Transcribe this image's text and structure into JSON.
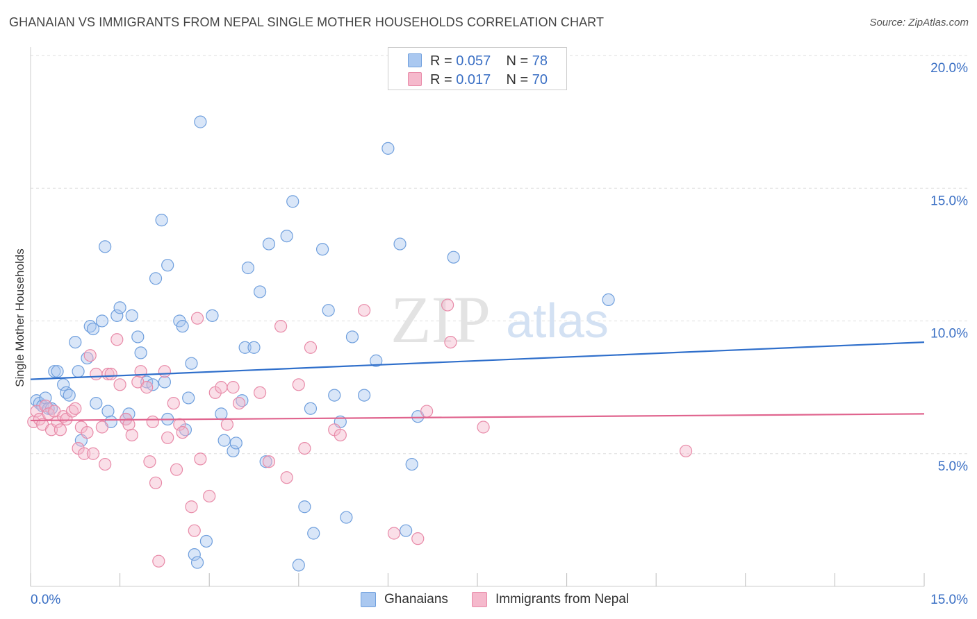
{
  "title": "GHANAIAN VS IMMIGRANTS FROM NEPAL SINGLE MOTHER HOUSEHOLDS CORRELATION CHART",
  "source": "Source: ZipAtlas.com",
  "watermark": {
    "zip": "ZIP",
    "atlas": "atlas"
  },
  "legend": {
    "rows": [
      {
        "r_label": "R =",
        "r_value": "0.057",
        "n_label": "N =",
        "n_value": "78"
      },
      {
        "r_label": "R =",
        "r_value": "0.017",
        "n_label": "N =",
        "n_value": "70"
      }
    ]
  },
  "colors": {
    "blue_fill": "#aac8f0",
    "blue_stroke": "#6f9fdd",
    "blue_line": "#2f6fcb",
    "pink_fill": "#f5b9cc",
    "pink_stroke": "#e88aa8",
    "pink_line": "#e0648e",
    "axis_text": "#3a6fc4",
    "grid": "#dddddd"
  },
  "chart_data": {
    "type": "scatter",
    "title": "GHANAIAN VS IMMIGRANTS FROM NEPAL SINGLE MOTHER HOUSEHOLDS CORRELATION CHART",
    "xlabel": "",
    "ylabel": "Single Mother Households",
    "xlim": [
      0,
      15
    ],
    "ylim": [
      0,
      20
    ],
    "x_tick_labels": [
      "0.0%",
      "15.0%"
    ],
    "y_tick_labels": [
      "5.0%",
      "10.0%",
      "15.0%",
      "20.0%"
    ],
    "y_ticks": [
      5,
      10,
      15,
      20
    ],
    "grid": true,
    "legend_position": "top-center",
    "series": [
      {
        "name": "Ghanaians",
        "trend": [
          [
            0,
            7.8
          ],
          [
            15,
            9.2
          ]
        ],
        "points": [
          [
            0.1,
            7.0
          ],
          [
            0.15,
            6.9
          ],
          [
            0.2,
            6.8
          ],
          [
            0.25,
            7.1
          ],
          [
            0.3,
            6.7
          ],
          [
            0.35,
            6.7
          ],
          [
            0.4,
            8.1
          ],
          [
            0.45,
            8.1
          ],
          [
            0.55,
            7.6
          ],
          [
            0.6,
            7.3
          ],
          [
            0.65,
            7.2
          ],
          [
            0.75,
            9.2
          ],
          [
            0.8,
            8.1
          ],
          [
            0.85,
            5.5
          ],
          [
            0.95,
            8.6
          ],
          [
            1.0,
            9.8
          ],
          [
            1.05,
            9.7
          ],
          [
            1.1,
            6.9
          ],
          [
            1.2,
            10.0
          ],
          [
            1.25,
            12.8
          ],
          [
            1.3,
            6.6
          ],
          [
            1.35,
            6.2
          ],
          [
            1.45,
            10.2
          ],
          [
            1.5,
            10.5
          ],
          [
            1.6,
            6.3
          ],
          [
            1.65,
            6.5
          ],
          [
            1.7,
            10.2
          ],
          [
            1.8,
            9.4
          ],
          [
            1.85,
            8.8
          ],
          [
            1.95,
            7.7
          ],
          [
            2.05,
            7.6
          ],
          [
            2.1,
            11.6
          ],
          [
            2.2,
            13.8
          ],
          [
            2.25,
            7.7
          ],
          [
            2.3,
            12.1
          ],
          [
            2.3,
            6.3
          ],
          [
            2.5,
            10.0
          ],
          [
            2.55,
            9.8
          ],
          [
            2.6,
            5.9
          ],
          [
            2.65,
            7.1
          ],
          [
            2.7,
            8.4
          ],
          [
            2.75,
            1.2
          ],
          [
            2.8,
            0.9
          ],
          [
            2.85,
            17.5
          ],
          [
            2.95,
            1.7
          ],
          [
            3.05,
            10.2
          ],
          [
            3.2,
            6.5
          ],
          [
            3.25,
            5.5
          ],
          [
            3.4,
            5.1
          ],
          [
            3.45,
            5.4
          ],
          [
            3.55,
            7.0
          ],
          [
            3.6,
            9.0
          ],
          [
            3.65,
            12.0
          ],
          [
            3.75,
            9.0
          ],
          [
            3.85,
            11.1
          ],
          [
            3.95,
            4.7
          ],
          [
            4.0,
            12.9
          ],
          [
            4.3,
            13.2
          ],
          [
            4.4,
            14.5
          ],
          [
            4.5,
            0.8
          ],
          [
            4.6,
            3.0
          ],
          [
            4.7,
            6.7
          ],
          [
            4.75,
            2.0
          ],
          [
            4.9,
            12.7
          ],
          [
            5.0,
            10.4
          ],
          [
            5.1,
            7.2
          ],
          [
            5.2,
            6.2
          ],
          [
            5.3,
            2.6
          ],
          [
            5.4,
            9.4
          ],
          [
            5.6,
            7.2
          ],
          [
            5.8,
            8.5
          ],
          [
            6.0,
            16.5
          ],
          [
            6.2,
            12.9
          ],
          [
            6.3,
            2.1
          ],
          [
            6.4,
            4.6
          ],
          [
            6.5,
            6.4
          ],
          [
            7.1,
            12.4
          ],
          [
            9.7,
            10.8
          ]
        ]
      },
      {
        "name": "Immigrants from Nepal",
        "trend": [
          [
            0,
            6.25
          ],
          [
            15,
            6.5
          ]
        ],
        "points": [
          [
            0.05,
            6.2
          ],
          [
            0.1,
            6.6
          ],
          [
            0.15,
            6.3
          ],
          [
            0.2,
            6.1
          ],
          [
            0.25,
            6.8
          ],
          [
            0.3,
            6.5
          ],
          [
            0.35,
            5.9
          ],
          [
            0.4,
            6.6
          ],
          [
            0.45,
            6.2
          ],
          [
            0.5,
            5.9
          ],
          [
            0.55,
            6.4
          ],
          [
            0.6,
            6.3
          ],
          [
            0.7,
            6.6
          ],
          [
            0.75,
            6.7
          ],
          [
            0.8,
            5.2
          ],
          [
            0.85,
            6.0
          ],
          [
            0.9,
            5.0
          ],
          [
            0.95,
            5.8
          ],
          [
            1.0,
            8.7
          ],
          [
            1.05,
            5.0
          ],
          [
            1.1,
            8.0
          ],
          [
            1.2,
            6.0
          ],
          [
            1.25,
            4.6
          ],
          [
            1.3,
            8.0
          ],
          [
            1.35,
            8.0
          ],
          [
            1.45,
            9.3
          ],
          [
            1.5,
            7.6
          ],
          [
            1.6,
            6.3
          ],
          [
            1.65,
            6.1
          ],
          [
            1.7,
            5.7
          ],
          [
            1.8,
            7.7
          ],
          [
            1.85,
            8.1
          ],
          [
            1.95,
            7.5
          ],
          [
            2.0,
            4.7
          ],
          [
            2.05,
            6.2
          ],
          [
            2.1,
            3.9
          ],
          [
            2.15,
            0.95
          ],
          [
            2.25,
            8.1
          ],
          [
            2.3,
            5.6
          ],
          [
            2.4,
            6.9
          ],
          [
            2.45,
            4.4
          ],
          [
            2.5,
            6.1
          ],
          [
            2.55,
            5.8
          ],
          [
            2.7,
            3.0
          ],
          [
            2.75,
            2.1
          ],
          [
            2.8,
            10.1
          ],
          [
            2.85,
            4.8
          ],
          [
            3.0,
            3.4
          ],
          [
            3.1,
            7.3
          ],
          [
            3.2,
            7.5
          ],
          [
            3.3,
            6.1
          ],
          [
            3.4,
            7.5
          ],
          [
            3.5,
            6.9
          ],
          [
            3.85,
            7.3
          ],
          [
            4.0,
            4.7
          ],
          [
            4.2,
            9.8
          ],
          [
            4.3,
            4.1
          ],
          [
            4.5,
            7.6
          ],
          [
            4.6,
            5.2
          ],
          [
            4.7,
            9.0
          ],
          [
            5.1,
            5.9
          ],
          [
            5.2,
            5.7
          ],
          [
            5.6,
            10.4
          ],
          [
            6.1,
            2.0
          ],
          [
            6.5,
            1.8
          ],
          [
            6.65,
            6.6
          ],
          [
            7.0,
            10.6
          ],
          [
            7.05,
            9.2
          ],
          [
            7.6,
            6.0
          ],
          [
            11.0,
            5.1
          ]
        ]
      }
    ]
  }
}
